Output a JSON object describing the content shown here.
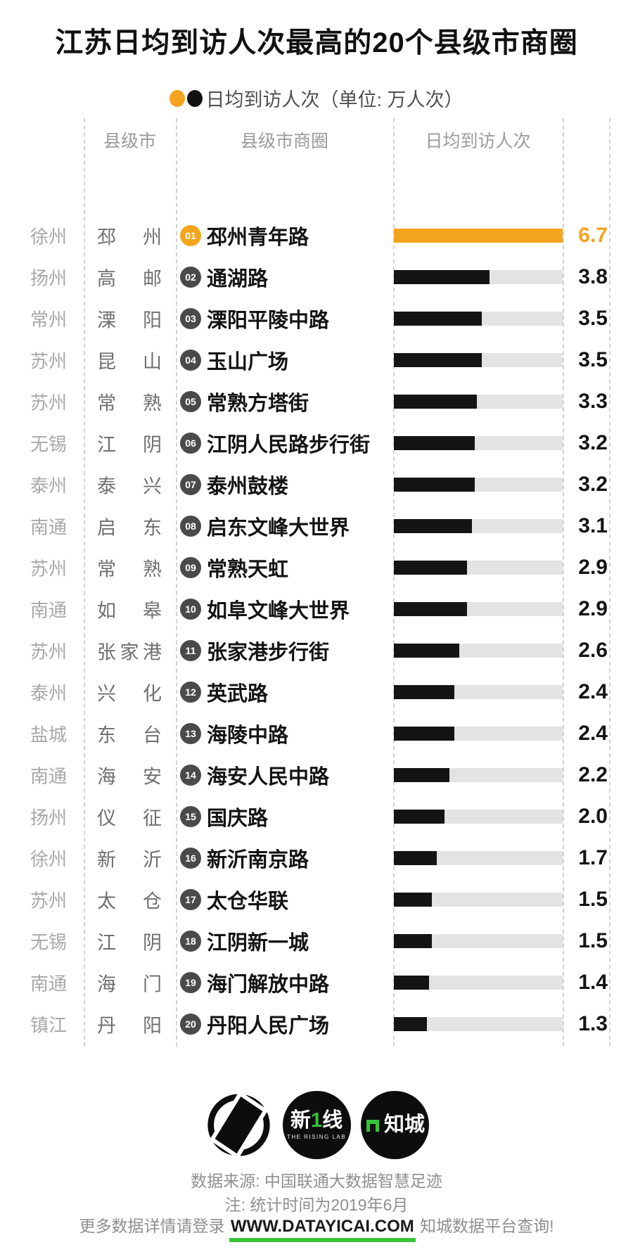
{
  "title": "江苏日均到访人次最高的20个县级市商圈",
  "legend": {
    "label": "日均到访人次（单位: 万人次）"
  },
  "colors": {
    "accent_orange": "#F5A41D",
    "bar_black": "#141414",
    "bar_track": "#E3E3E3",
    "green_accent": "#38C23A",
    "gray_text": "#9B9B9B"
  },
  "table": {
    "headers": [
      "县级市",
      "县级市商圈",
      "日均到访人次"
    ],
    "rows": [
      {
        "rank": "01",
        "prefecture": "徐州",
        "county": "邳州",
        "district": "邳州青年路",
        "value": "6.7",
        "highlight": true
      },
      {
        "rank": "02",
        "prefecture": "扬州",
        "county": "高邮",
        "district": "通湖路",
        "value": "3.8",
        "highlight": false
      },
      {
        "rank": "03",
        "prefecture": "常州",
        "county": "溧阳",
        "district": "溧阳平陵中路",
        "value": "3.5",
        "highlight": false
      },
      {
        "rank": "04",
        "prefecture": "苏州",
        "county": "昆山",
        "district": "玉山广场",
        "value": "3.5",
        "highlight": false
      },
      {
        "rank": "05",
        "prefecture": "苏州",
        "county": "常熟",
        "district": "常熟方塔街",
        "value": "3.3",
        "highlight": false
      },
      {
        "rank": "06",
        "prefecture": "无锡",
        "county": "江阴",
        "district": "江阴人民路步行街",
        "value": "3.2",
        "highlight": false
      },
      {
        "rank": "07",
        "prefecture": "泰州",
        "county": "泰兴",
        "district": "泰州鼓楼",
        "value": "3.2",
        "highlight": false
      },
      {
        "rank": "08",
        "prefecture": "南通",
        "county": "启东",
        "district": "启东文峰大世界",
        "value": "3.1",
        "highlight": false
      },
      {
        "rank": "09",
        "prefecture": "苏州",
        "county": "常熟",
        "district": "常熟天虹",
        "value": "2.9",
        "highlight": false
      },
      {
        "rank": "10",
        "prefecture": "南通",
        "county": "如皋",
        "district": "如阜文峰大世界",
        "value": "2.9",
        "highlight": false
      },
      {
        "rank": "11",
        "prefecture": "苏州",
        "county": "张家港",
        "district": "张家港步行街",
        "value": "2.6",
        "highlight": false
      },
      {
        "rank": "12",
        "prefecture": "泰州",
        "county": "兴化",
        "district": "英武路",
        "value": "2.4",
        "highlight": false
      },
      {
        "rank": "13",
        "prefecture": "盐城",
        "county": "东台",
        "district": "海陵中路",
        "value": "2.4",
        "highlight": false
      },
      {
        "rank": "14",
        "prefecture": "南通",
        "county": "海安",
        "district": "海安人民中路",
        "value": "2.2",
        "highlight": false
      },
      {
        "rank": "15",
        "prefecture": "扬州",
        "county": "仪征",
        "district": "国庆路",
        "value": "2.0",
        "highlight": false
      },
      {
        "rank": "16",
        "prefecture": "徐州",
        "county": "新沂",
        "district": "新沂南京路",
        "value": "1.7",
        "highlight": false
      },
      {
        "rank": "17",
        "prefecture": "苏州",
        "county": "太仓",
        "district": "太仓华联",
        "value": "1.5",
        "highlight": false
      },
      {
        "rank": "18",
        "prefecture": "无锡",
        "county": "江阴",
        "district": "江阴新一城",
        "value": "1.5",
        "highlight": false
      },
      {
        "rank": "19",
        "prefecture": "南通",
        "county": "海门",
        "district": "海门解放中路",
        "value": "1.4",
        "highlight": false
      },
      {
        "rank": "20",
        "prefecture": "镇江",
        "county": "丹阳",
        "district": "丹阳人民广场",
        "value": "1.3",
        "highlight": false
      }
    ]
  },
  "chart_data": {
    "type": "bar",
    "orientation": "horizontal",
    "title": "江苏日均到访人次最高的20个县级市商圈",
    "unit_label": "日均到访人次（单位: 万人次）",
    "categories": [
      "邳州青年路",
      "通湖路",
      "溧阳平陵中路",
      "玉山广场",
      "常熟方塔街",
      "江阴人民路步行街",
      "泰州鼓楼",
      "启东文峰大世界",
      "常熟天虹",
      "如阜文峰大世界",
      "张家港步行街",
      "英武路",
      "海陵中路",
      "海安人民中路",
      "国庆路",
      "新沂南京路",
      "太仓华联",
      "江阴新一城",
      "海门解放中路",
      "丹阳人民广场"
    ],
    "values": [
      6.7,
      3.8,
      3.5,
      3.5,
      3.3,
      3.2,
      3.2,
      3.1,
      2.9,
      2.9,
      2.6,
      2.4,
      2.4,
      2.2,
      2.0,
      1.7,
      1.5,
      1.5,
      1.4,
      1.3
    ],
    "prefectures": [
      "徐州",
      "扬州",
      "常州",
      "苏州",
      "苏州",
      "无锡",
      "泰州",
      "南通",
      "苏州",
      "南通",
      "苏州",
      "泰州",
      "盐城",
      "南通",
      "扬州",
      "徐州",
      "苏州",
      "无锡",
      "南通",
      "镇江"
    ],
    "counties": [
      "邳州",
      "高邮",
      "溧阳",
      "昆山",
      "常熟",
      "江阴",
      "泰兴",
      "启东",
      "常熟",
      "如皋",
      "张家港",
      "兴化",
      "东台",
      "海安",
      "仪征",
      "新沂",
      "太仓",
      "江阴",
      "海门",
      "丹阳"
    ],
    "xlim": [
      0,
      6.7
    ],
    "highlight_index": 0,
    "grid": false,
    "legend_position": "top"
  },
  "footer": {
    "logos": [
      {
        "name": "dt-finance-logo"
      },
      {
        "name": "rising-lab-logo",
        "line1_left": "新",
        "line1_mark": "1",
        "line1_right": "线",
        "line2": "THE RISING LAB"
      },
      {
        "name": "zhicheng-logo",
        "label": "知城"
      }
    ],
    "source": "数据来源: 中国联通大数据智慧足迹",
    "note": "注: 统计时间为2019年6月",
    "promo": {
      "prefix": "更多数据详情请登录 ",
      "link": "WWW.DATAYICAI.COM",
      "suffix": " 知城数据平台查询!"
    }
  }
}
